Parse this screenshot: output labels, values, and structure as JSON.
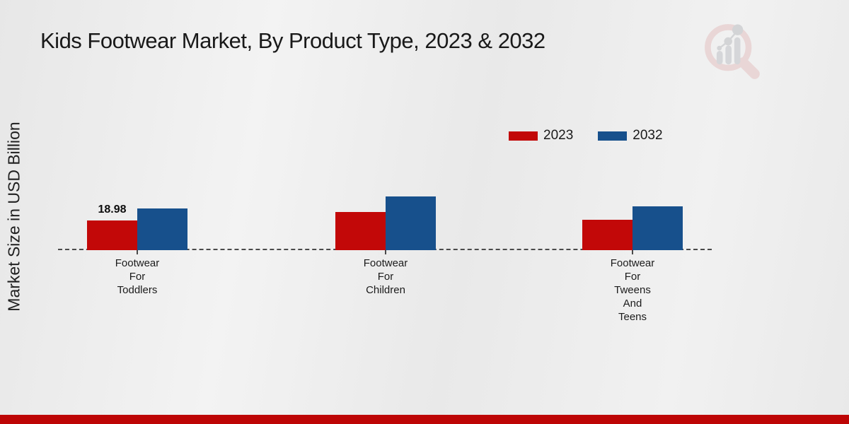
{
  "page": {
    "title": "Kids Footwear Market, By Product Type, 2023 & 2032",
    "y_axis_label": "Market Size in USD Billion"
  },
  "legend": {
    "items": [
      {
        "label": "2023",
        "color": "#c20808"
      },
      {
        "label": "2032",
        "color": "#17508c"
      }
    ]
  },
  "colors": {
    "series_2023": "#c20808",
    "series_2032": "#17508c",
    "footer_band": "#bd0505",
    "baseline": "#4a4a4a"
  },
  "chart_data": {
    "type": "bar",
    "title": "Kids Footwear Market, By Product Type, 2023 & 2032",
    "xlabel": "",
    "ylabel": "Market Size in USD Billion",
    "units": "USD Billion",
    "categories": [
      [
        "Footwear",
        "For",
        "Toddlers"
      ],
      [
        "Footwear",
        "For",
        "Children"
      ],
      [
        "Footwear",
        "For",
        "Tweens",
        "And",
        "Teens"
      ]
    ],
    "series": [
      {
        "name": "2023",
        "color": "#c20808",
        "values": [
          18.98,
          24.4,
          19.4
        ]
      },
      {
        "name": "2032",
        "color": "#17508c",
        "values": [
          26.7,
          34.3,
          28.0
        ]
      }
    ],
    "value_labels": [
      {
        "series_index": 0,
        "category_index": 0,
        "text": "18.98"
      }
    ],
    "ylim": [
      0,
      40
    ],
    "grid": false,
    "baseline_style": "dashed",
    "legend_position": "top-right"
  }
}
